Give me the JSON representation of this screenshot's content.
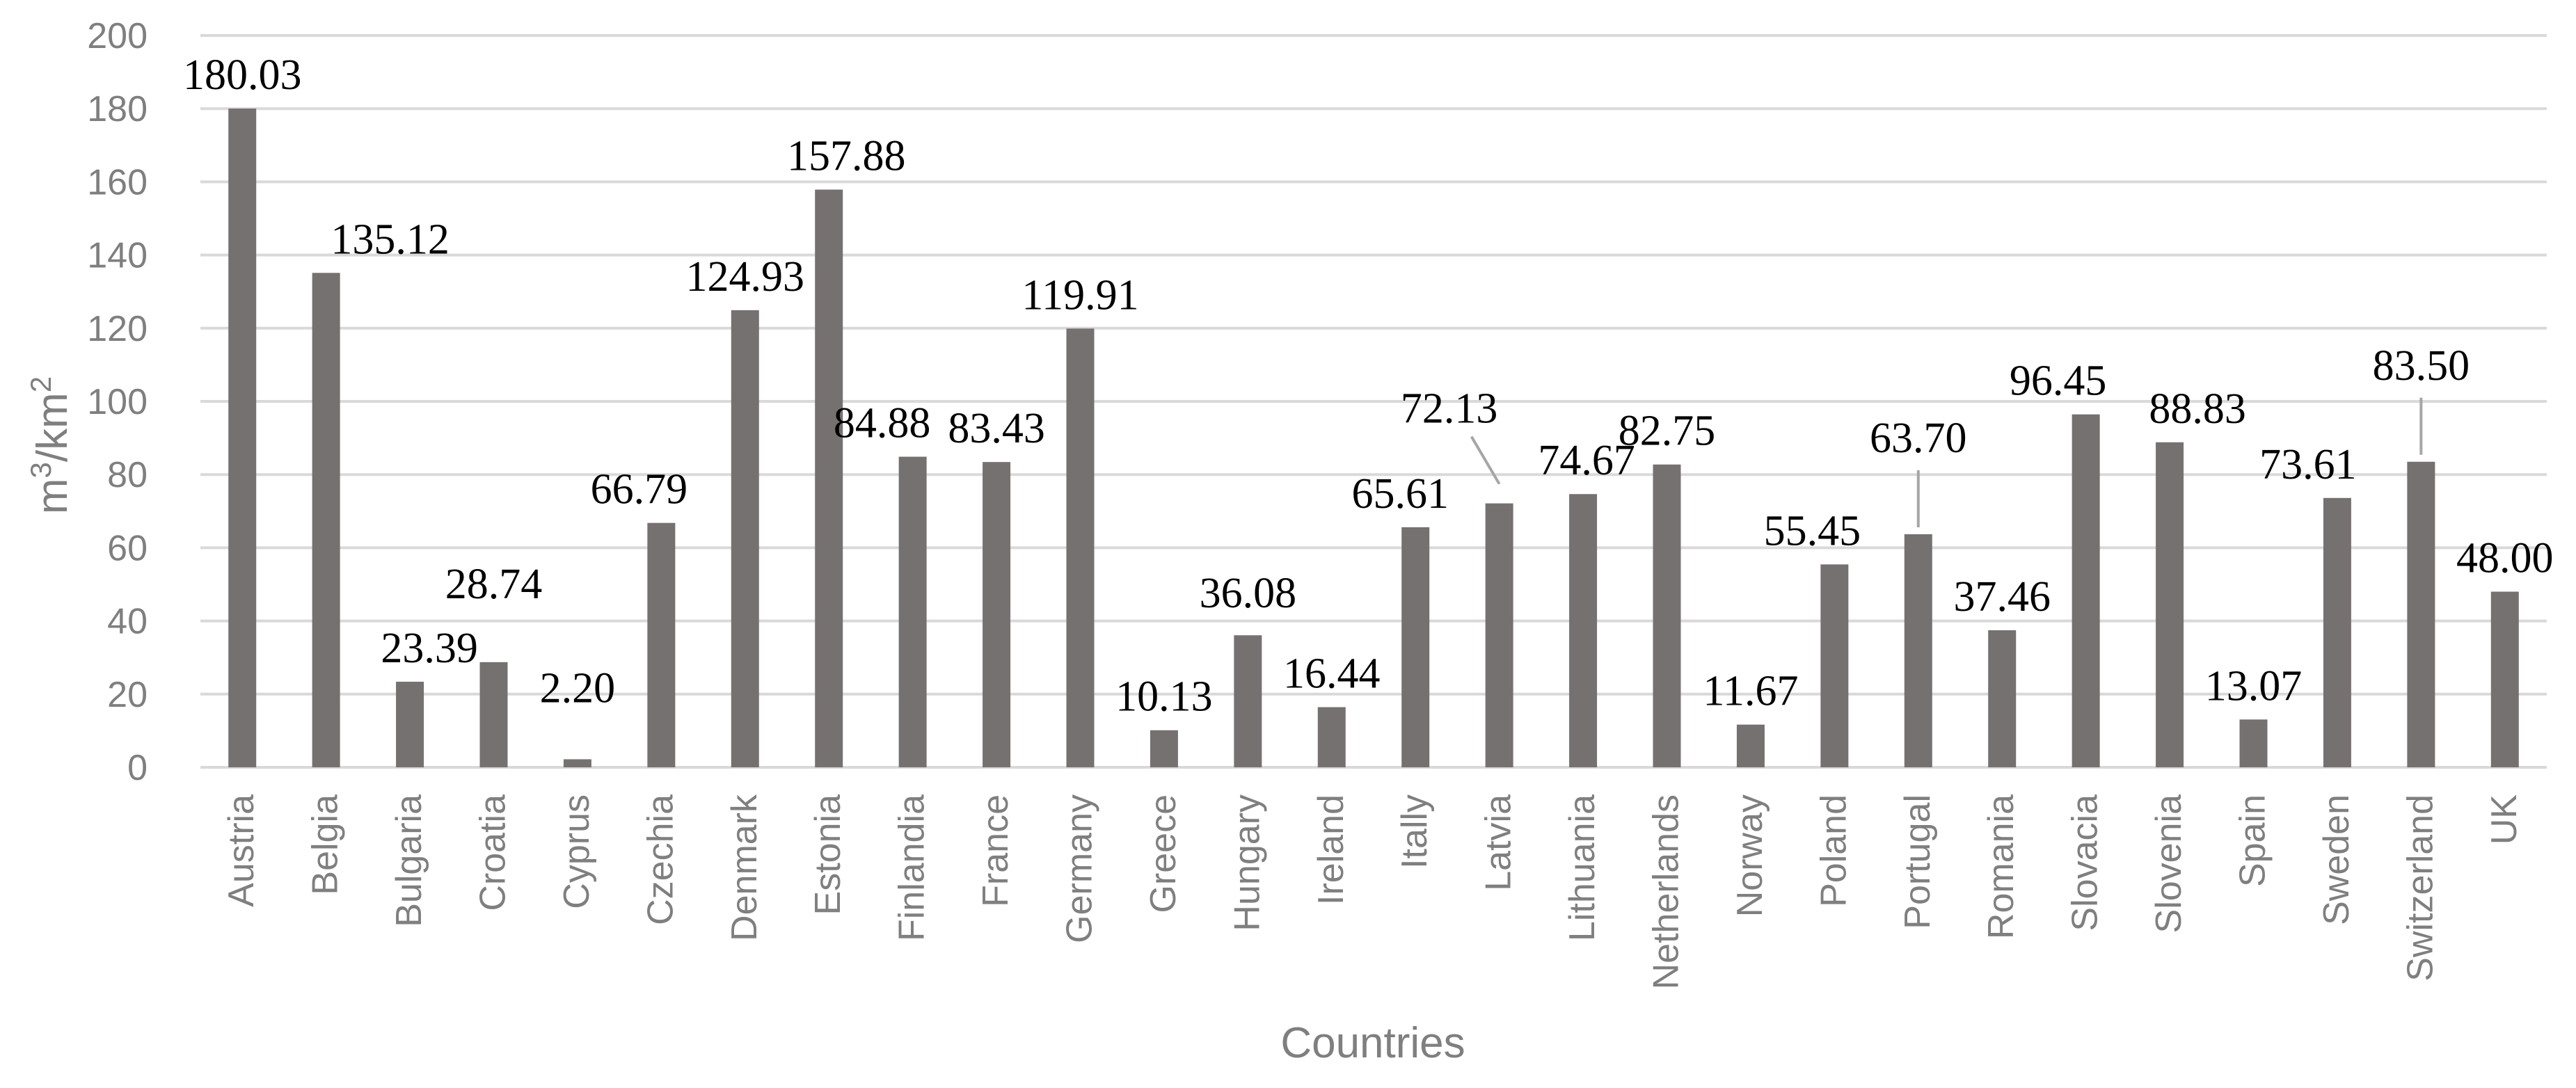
{
  "chart_data": {
    "type": "bar",
    "xlabel": "Countries",
    "ylabel": "m³/km²",
    "ylim": [
      0,
      200
    ],
    "yticks": [
      0,
      20,
      40,
      60,
      80,
      100,
      120,
      140,
      160,
      180,
      200
    ],
    "grid": true,
    "legend": "none",
    "bar_color": "#767171",
    "grid_color": "#d9d9d9",
    "categories": [
      "Austria",
      "Belgia",
      "Bulgaria",
      "Croatia",
      "Cyprus",
      "Czechia",
      "Denmark",
      "Estonia",
      "Finlandia",
      "France",
      "Germany",
      "Greece",
      "Hungary",
      "Ireland",
      "Itally",
      "Latvia",
      "Lithuania",
      "Netherlands",
      "Norway",
      "Poland",
      "Portugal",
      "Romania",
      "Slovacia",
      "Slovenia",
      "Spain",
      "Sweden",
      "Switzerland",
      "UK"
    ],
    "values": [
      180.03,
      135.12,
      23.39,
      28.74,
      2.2,
      66.79,
      124.93,
      157.88,
      84.88,
      83.43,
      119.91,
      10.13,
      36.08,
      16.44,
      65.61,
      72.13,
      74.67,
      82.75,
      11.67,
      55.45,
      63.7,
      37.46,
      96.45,
      88.83,
      13.07,
      73.61,
      83.5,
      48.0
    ],
    "data_labels": [
      "180.03",
      "135.12",
      "23.39",
      "28.74",
      "2.20",
      "66.79",
      "124.93",
      "157.88",
      "84.88",
      "83.43",
      "119.91",
      "10.13",
      "36.08",
      "16.44",
      "65.61",
      "72.13",
      "74.67",
      "82.75",
      "11.67",
      "55.45",
      "63.70",
      "37.46",
      "96.45",
      "88.83",
      "13.07",
      "73.61",
      "83.50",
      "48.00"
    ]
  }
}
